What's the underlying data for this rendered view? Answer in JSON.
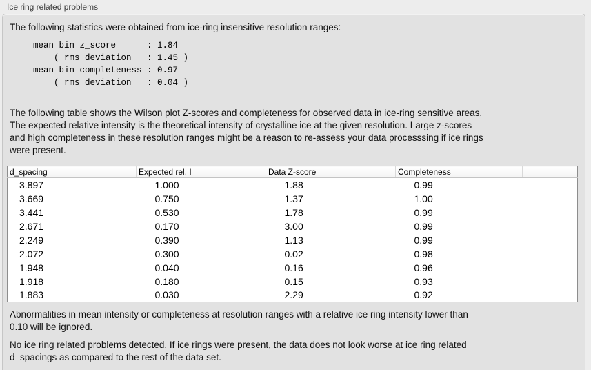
{
  "panel": {
    "title": "Ice ring related problems"
  },
  "intro_text": "The following statistics were obtained from ice-ring insensitive resolution ranges:",
  "stats_block": "mean bin z_score      : 1.84\n    ( rms deviation   : 1.45 )\nmean bin completeness : 0.97\n    ( rms deviation   : 0.04 )",
  "stats": {
    "mean_bin_z_score": "1.84",
    "z_score_rms_deviation": "1.45",
    "mean_bin_completeness": "0.97",
    "completeness_rms_deviation": "0.04"
  },
  "table_description": "The following table shows the Wilson plot Z-scores and completeness for observed data in ice-ring sensitive areas.\nThe expected relative intensity is the theoretical intensity of crystalline ice at the given resolution. Large z-scores\nand high completeness in these resolution ranges might be a reason to re-assess your data processsing if ice rings\nwere present.",
  "table": {
    "columns": [
      "d_spacing",
      "Expected rel. I",
      "Data Z-score",
      "Completeness"
    ],
    "rows": [
      [
        "3.897",
        "1.000",
        "1.88",
        "0.99"
      ],
      [
        "3.669",
        "0.750",
        "1.37",
        "1.00"
      ],
      [
        "3.441",
        "0.530",
        "1.78",
        "0.99"
      ],
      [
        "2.671",
        "0.170",
        "3.00",
        "0.99"
      ],
      [
        "2.249",
        "0.390",
        "1.13",
        "0.99"
      ],
      [
        "2.072",
        "0.300",
        "0.02",
        "0.98"
      ],
      [
        "1.948",
        "0.040",
        "0.16",
        "0.96"
      ],
      [
        "1.918",
        "0.180",
        "0.15",
        "0.93"
      ],
      [
        "1.883",
        "0.030",
        "2.29",
        "0.92"
      ]
    ]
  },
  "ignore_note": "Abnormalities in mean intensity or completeness at resolution ranges with a relative ice ring intensity lower than\n0.10 will be ignored.",
  "conclusion_text": "No ice ring related problems detected. If ice rings were present, the data does not look worse at ice ring related\nd_spacings as compared to the rest of the data set.",
  "colors": {
    "page_background": "#ededed",
    "groupbox_background": "#e2e2e2",
    "table_background": "#ffffff",
    "table_border": "#8d8d8d",
    "text": "#111111"
  }
}
